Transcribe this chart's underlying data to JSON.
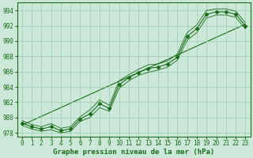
{
  "x": [
    0,
    1,
    2,
    3,
    4,
    5,
    6,
    7,
    8,
    9,
    10,
    11,
    12,
    13,
    14,
    15,
    16,
    17,
    18,
    19,
    20,
    21,
    22,
    23
  ],
  "y_main": [
    979.3,
    978.8,
    978.5,
    978.8,
    978.3,
    978.5,
    979.8,
    980.5,
    981.8,
    981.2,
    984.3,
    985.2,
    985.9,
    986.4,
    986.6,
    987.0,
    987.9,
    990.6,
    991.6,
    993.5,
    993.8,
    993.8,
    993.5,
    992.0
  ],
  "y_min": [
    979.0,
    978.5,
    978.2,
    978.4,
    978.0,
    978.2,
    979.5,
    980.0,
    981.3,
    980.8,
    983.8,
    984.8,
    985.5,
    985.9,
    986.2,
    986.6,
    987.5,
    990.1,
    991.1,
    993.0,
    993.4,
    993.4,
    993.1,
    991.6
  ],
  "y_max": [
    979.6,
    979.1,
    978.8,
    979.2,
    978.6,
    978.8,
    980.1,
    981.0,
    982.3,
    981.6,
    984.8,
    985.6,
    986.3,
    986.9,
    987.0,
    987.4,
    988.3,
    991.1,
    992.1,
    994.0,
    994.2,
    994.2,
    993.9,
    992.4
  ],
  "trend_x": [
    0,
    23
  ],
  "trend_y": [
    979.0,
    992.2
  ],
  "ylim": [
    977.5,
    995.0
  ],
  "xlim": [
    -0.5,
    23.5
  ],
  "yticks": [
    978,
    980,
    982,
    984,
    986,
    988,
    990,
    992,
    994
  ],
  "xticks": [
    0,
    1,
    2,
    3,
    4,
    5,
    6,
    7,
    8,
    9,
    10,
    11,
    12,
    13,
    14,
    15,
    16,
    17,
    18,
    19,
    20,
    21,
    22,
    23
  ],
  "xlabel": "Graphe pression niveau de la mer (hPa)",
  "line_color": "#1a6b1a",
  "bg_color": "#cce8d8",
  "grid_color": "#99ccb0",
  "marker": "D",
  "marker_size": 2.5,
  "line_width": 0.8,
  "tick_fontsize": 5.5,
  "xlabel_fontsize": 6.5
}
